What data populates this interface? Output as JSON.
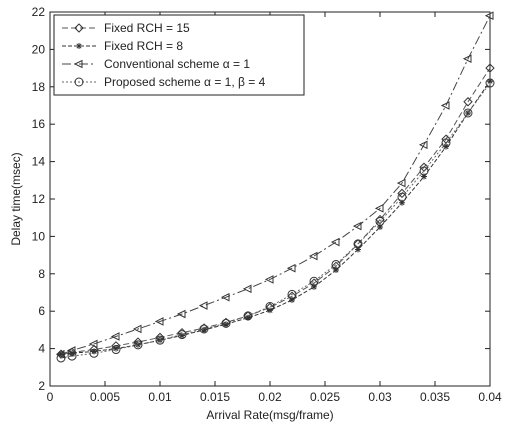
{
  "chart_data": {
    "type": "line",
    "title": "",
    "xlabel": "Arrival Rate(msg/frame)",
    "ylabel": "Delay time(msec)",
    "xlim": [
      0,
      0.04
    ],
    "ylim": [
      2,
      22
    ],
    "x_ticks": [
      0,
      0.005,
      0.01,
      0.015,
      0.02,
      0.025,
      0.03,
      0.035,
      0.04
    ],
    "x_tick_labels": [
      "0",
      "0.005",
      "0.01",
      "0.015",
      "0.02",
      "0.025",
      "0.03",
      "0.035",
      "0.04"
    ],
    "y_ticks": [
      2,
      4,
      6,
      8,
      10,
      12,
      14,
      16,
      18,
      20,
      22
    ],
    "y_tick_labels": [
      "2",
      "4",
      "6",
      "8",
      "10",
      "12",
      "14",
      "16",
      "18",
      "20",
      "22"
    ],
    "grid": false,
    "legend_position": "top-left",
    "x": [
      0.001,
      0.002,
      0.004,
      0.006,
      0.008,
      0.01,
      0.012,
      0.014,
      0.016,
      0.018,
      0.02,
      0.022,
      0.024,
      0.026,
      0.028,
      0.03,
      0.032,
      0.034,
      0.036,
      0.038,
      0.04
    ],
    "series": [
      {
        "name": "Fixed RCH = 15",
        "marker": "diamond",
        "values": [
          3.7,
          3.8,
          3.95,
          4.15,
          4.35,
          4.6,
          4.85,
          5.1,
          5.4,
          5.75,
          6.2,
          6.8,
          7.5,
          8.4,
          9.6,
          10.9,
          12.3,
          13.7,
          15.2,
          17.2,
          19.0
        ]
      },
      {
        "name": "Fixed RCH = 8",
        "marker": "star",
        "values": [
          3.7,
          3.75,
          3.85,
          4.0,
          4.2,
          4.45,
          4.7,
          5.0,
          5.3,
          5.65,
          6.05,
          6.6,
          7.3,
          8.2,
          9.3,
          10.5,
          11.8,
          13.2,
          14.8,
          16.6,
          18.3
        ]
      },
      {
        "name": "Conventional scheme α = 1",
        "marker": "triangle",
        "values": [
          3.7,
          3.9,
          4.25,
          4.65,
          5.05,
          5.45,
          5.85,
          6.3,
          6.75,
          7.2,
          7.7,
          8.3,
          8.95,
          9.7,
          10.55,
          11.5,
          12.85,
          14.9,
          17.0,
          19.5,
          21.8
        ]
      },
      {
        "name": "Proposed scheme α = 1, β = 4",
        "marker": "circle",
        "values": [
          3.5,
          3.6,
          3.75,
          3.95,
          4.2,
          4.45,
          4.75,
          5.05,
          5.35,
          5.75,
          6.25,
          6.9,
          7.6,
          8.5,
          9.6,
          10.8,
          12.1,
          13.5,
          15.0,
          16.6,
          18.2
        ]
      }
    ]
  }
}
